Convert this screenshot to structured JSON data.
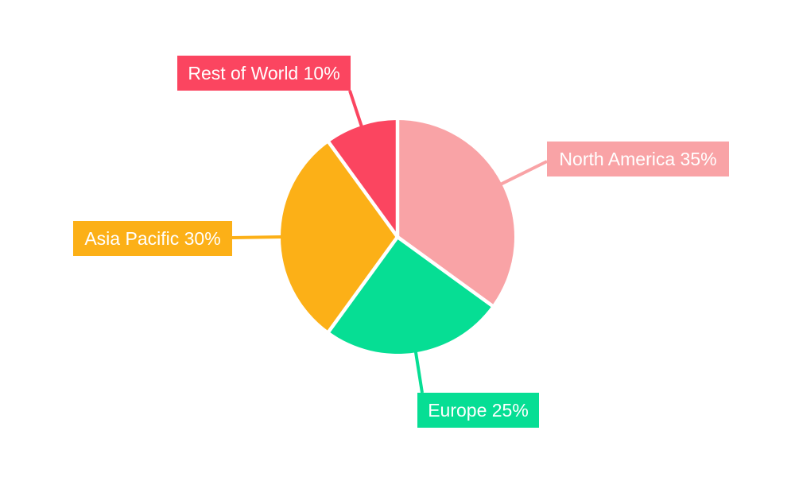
{
  "chart_data": {
    "type": "pie",
    "labels": [
      "North America",
      "Europe",
      "Asia Pacific",
      "Rest of World"
    ],
    "values": [
      35,
      25,
      30,
      10
    ],
    "unit": "%",
    "label_texts": [
      "North America 35%",
      "Europe 25%",
      "Asia Pacific 30%",
      "Rest of World 10%"
    ],
    "colors": [
      "#F9A3A6",
      "#06DE94",
      "#FCB017",
      "#FB4560"
    ],
    "label_text_color": "#FFFFFF",
    "separator_color": "#FFFFFF",
    "background": "#FFFFFF",
    "start_angle_deg": 0,
    "direction": "clockwise",
    "legend_position": "none",
    "title": ""
  }
}
